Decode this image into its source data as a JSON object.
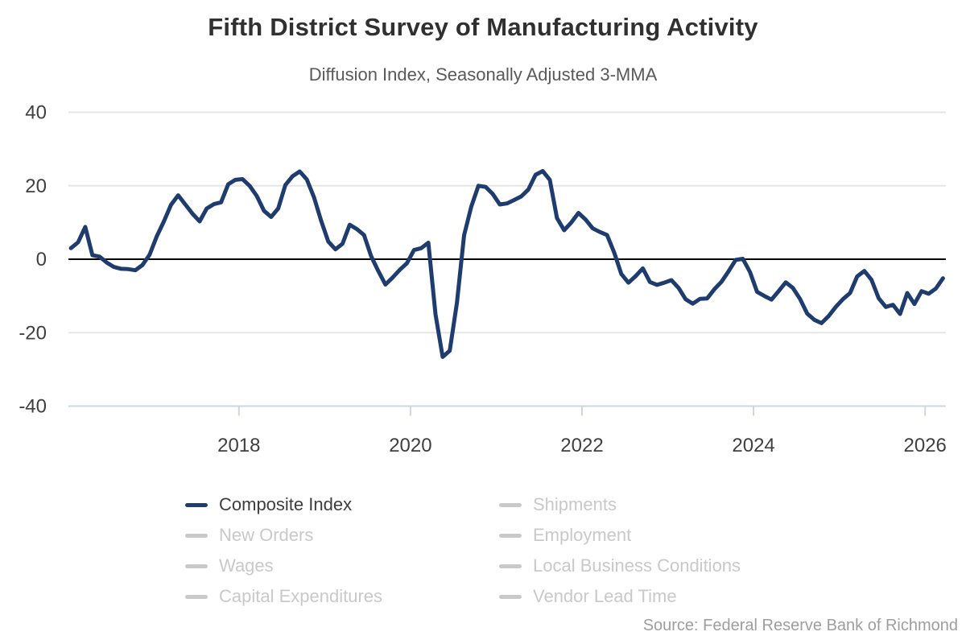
{
  "title": "Fifth District Survey of Manufacturing Activity",
  "subtitle": "Diffusion Index, Seasonally Adjusted 3-MMA",
  "source": "Source: Federal Reserve Bank of Richmond",
  "colors": {
    "accent": "#1f3c6e",
    "inactive": "#c9c9c9",
    "grid": "#e6e6e6",
    "zero_line": "#000000",
    "axis_line": "#ccd6e4",
    "tick_label": "#404040",
    "title": "#303030",
    "subtitle": "#595959",
    "source_text": "#9e9e9e"
  },
  "legend": {
    "columns": [
      [
        {
          "label": "Composite Index",
          "active": true
        },
        {
          "label": "New Orders",
          "active": false
        },
        {
          "label": "Wages",
          "active": false
        },
        {
          "label": "Capital Expenditures",
          "active": false
        }
      ],
      [
        {
          "label": "Shipments",
          "active": false
        },
        {
          "label": "Employment",
          "active": false
        },
        {
          "label": "Local Business Conditions",
          "active": false
        },
        {
          "label": "Vendor Lead Time",
          "active": false
        }
      ]
    ]
  },
  "chart_data": {
    "type": "line",
    "title": "Fifth District Survey of Manufacturing Activity",
    "subtitle": "Diffusion Index, Seasonally Adjusted 3-MMA",
    "xlabel": "",
    "ylabel": "Diffusion Index",
    "ylim": [
      -40,
      40
    ],
    "yticks": [
      40,
      20,
      0,
      -20,
      -40
    ],
    "xticks": [
      2018,
      2020,
      2022,
      2024,
      2026
    ],
    "grid": "horizontal",
    "legend_position": "bottom",
    "series": [
      {
        "name": "Composite Index",
        "active": true,
        "color": "#1f3c6e",
        "frequency": "monthly",
        "start": "2016-01",
        "end": "2026-03",
        "values": [
          3.0,
          4.6,
          8.8,
          1.1,
          0.7,
          -0.9,
          -2.1,
          -2.6,
          -2.7,
          -3.0,
          -1.6,
          1.2,
          6.2,
          10.3,
          14.8,
          17.4,
          14.9,
          12.4,
          10.3,
          13.8,
          15.0,
          15.5,
          20.4,
          21.6,
          21.8,
          20.0,
          17.2,
          13.2,
          11.5,
          13.8,
          20.2,
          22.6,
          23.9,
          21.7,
          16.9,
          10.5,
          4.8,
          2.7,
          4.2,
          9.4,
          8.2,
          6.6,
          0.8,
          -3.2,
          -6.9,
          -5.0,
          -2.9,
          -1.1,
          2.5,
          3.0,
          4.5,
          -15.0,
          -26.6,
          -24.9,
          -11.9,
          6.5,
          14.3,
          20.0,
          19.7,
          17.8,
          14.9,
          15.2,
          16.1,
          17.1,
          19.0,
          23.0,
          24.0,
          21.6,
          11.2,
          7.9,
          10.0,
          12.6,
          10.8,
          8.4,
          7.4,
          6.6,
          1.8,
          -4.0,
          -6.4,
          -4.6,
          -2.5,
          -6.2,
          -7.0,
          -6.4,
          -5.7,
          -7.8,
          -10.9,
          -12.1,
          -10.8,
          -10.7,
          -8.2,
          -6.2,
          -3.3,
          -0.2,
          0.1,
          -3.5,
          -8.9,
          -10.0,
          -11.0,
          -8.7,
          -6.3,
          -7.8,
          -10.8,
          -14.8,
          -16.5,
          -17.4,
          -15.5,
          -13.0,
          -10.9,
          -9.2,
          -4.7,
          -3.2,
          -5.6,
          -10.6,
          -13.0,
          -12.4,
          -14.9,
          -9.2,
          -12.2,
          -8.7,
          -9.4,
          -8.0,
          -5.2
        ]
      },
      {
        "name": "New Orders",
        "active": false,
        "color": "#c9c9c9"
      },
      {
        "name": "Wages",
        "active": false,
        "color": "#c9c9c9"
      },
      {
        "name": "Capital Expenditures",
        "active": false,
        "color": "#c9c9c9"
      },
      {
        "name": "Shipments",
        "active": false,
        "color": "#c9c9c9"
      },
      {
        "name": "Employment",
        "active": false,
        "color": "#c9c9c9"
      },
      {
        "name": "Local Business Conditions",
        "active": false,
        "color": "#c9c9c9"
      },
      {
        "name": "Vendor Lead Time",
        "active": false,
        "color": "#c9c9c9"
      }
    ]
  }
}
